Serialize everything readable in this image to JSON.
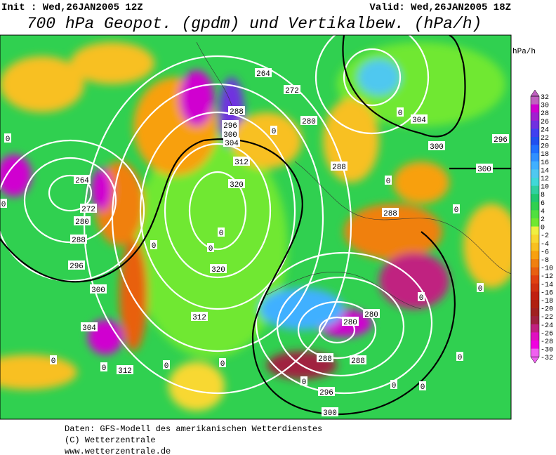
{
  "header": {
    "init": "Init : Wed,26JAN2005 12Z",
    "valid": "Valid: Wed,26JAN2005 18Z",
    "title": "700 hPa Geopot. (gpdm) und Vertikalbew. (hPa/h)"
  },
  "colorbar": {
    "unit": "hPa/h",
    "ticks": [
      32,
      30,
      28,
      26,
      24,
      22,
      20,
      18,
      16,
      14,
      12,
      10,
      8,
      6,
      4,
      2,
      0,
      -2,
      -4,
      -6,
      -8,
      -10,
      -12,
      -14,
      -16,
      -18,
      -20,
      -22,
      -24,
      -26,
      -28,
      -30,
      -32
    ],
    "colors": [
      "#c060c0",
      "#d000d0",
      "#a020d0",
      "#7030e0",
      "#4040f0",
      "#2050f0",
      "#2070ff",
      "#3090ff",
      "#40b0ff",
      "#50c8f0",
      "#40d8d8",
      "#30d0a0",
      "#20c870",
      "#30d050",
      "#50e040",
      "#70e830",
      "#f0f040",
      "#f8d830",
      "#f8c020",
      "#f8a010",
      "#f08010",
      "#e86010",
      "#e04010",
      "#d03010",
      "#c02010",
      "#b02010",
      "#a02020",
      "#a02040",
      "#c02080",
      "#e010c0",
      "#f000e0",
      "#f060f0"
    ]
  },
  "contour_labels": [
    264,
    272,
    288,
    296,
    300,
    304,
    312,
    320,
    280,
    304,
    300,
    296,
    300,
    288,
    264,
    272,
    280,
    288,
    296,
    300,
    304,
    312,
    312,
    320,
    288,
    280,
    280,
    288,
    288,
    296,
    300,
    0,
    0,
    0,
    0,
    0,
    0,
    0,
    0,
    0,
    0,
    0,
    0,
    0,
    0,
    0,
    0,
    0,
    0,
    0
  ],
  "footer": [
    "Daten: GFS-Modell des amerikanischen Wetterdienstes",
    "(C) Wetterzentrale",
    "www.wetterzentrale.de"
  ]
}
